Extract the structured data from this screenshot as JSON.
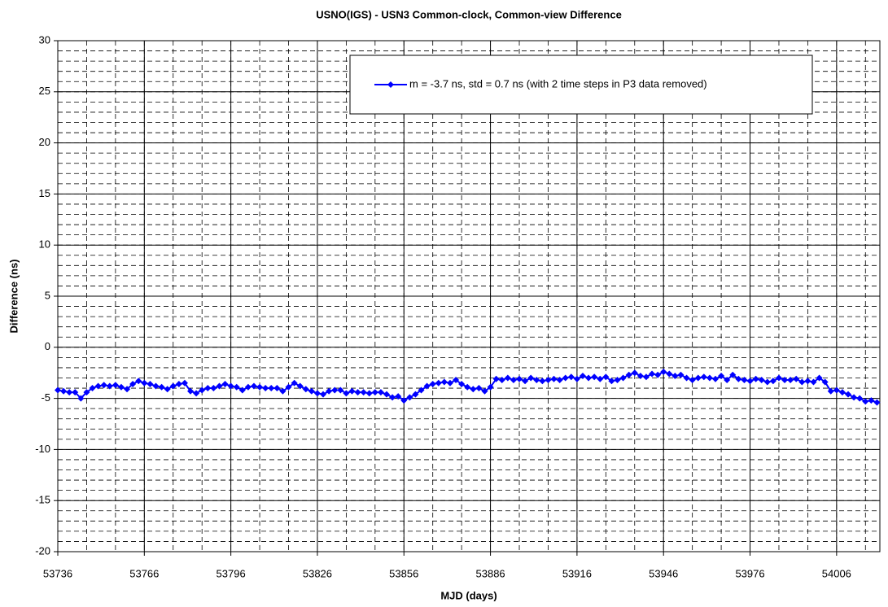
{
  "chart_data": {
    "type": "line",
    "title": "USNO(IGS) - USN3 Common-clock, Common-view Difference",
    "x_label": "MJD (days)",
    "y_label": "Difference (ns)",
    "x": [
      53736,
      53738,
      53740,
      53742,
      53744,
      53746,
      53748,
      53750,
      53752,
      53754,
      53756,
      53758,
      53760,
      53762,
      53764,
      53766,
      53768,
      53770,
      53772,
      53774,
      53776,
      53778,
      53780,
      53782,
      53784,
      53786,
      53788,
      53790,
      53792,
      53794,
      53796,
      53798,
      53800,
      53802,
      53804,
      53806,
      53808,
      53810,
      53812,
      53814,
      53816,
      53818,
      53820,
      53822,
      53824,
      53826,
      53828,
      53830,
      53832,
      53834,
      53836,
      53838,
      53840,
      53842,
      53844,
      53846,
      53848,
      53850,
      53852,
      53854,
      53856,
      53858,
      53860,
      53862,
      53864,
      53866,
      53868,
      53870,
      53872,
      53874,
      53876,
      53878,
      53880,
      53882,
      53884,
      53886,
      53888,
      53890,
      53892,
      53894,
      53896,
      53898,
      53900,
      53902,
      53904,
      53906,
      53908,
      53910,
      53912,
      53914,
      53916,
      53918,
      53920,
      53922,
      53924,
      53926,
      53928,
      53930,
      53932,
      53934,
      53936,
      53938,
      53940,
      53942,
      53944,
      53946,
      53948,
      53950,
      53952,
      53954,
      53956,
      53958,
      53960,
      53962,
      53964,
      53966,
      53968,
      53970,
      53972,
      53974,
      53976,
      53978,
      53980,
      53982,
      53984,
      53986,
      53988,
      53990,
      53992,
      53994,
      53996,
      53998,
      54000,
      54002,
      54004,
      54006,
      54008,
      54010,
      54012,
      54014,
      54016,
      54018,
      54020
    ],
    "series": [
      {
        "name": "m = -3.7 ns, std = 0.7 ns (with 2 time steps in P3 data removed)",
        "color": "#0000ff",
        "values": [
          -4.2,
          -4.3,
          -4.4,
          -4.4,
          -5.0,
          -4.4,
          -4.0,
          -3.8,
          -3.7,
          -3.8,
          -3.7,
          -3.9,
          -4.1,
          -3.6,
          -3.3,
          -3.5,
          -3.6,
          -3.8,
          -3.9,
          -4.1,
          -3.8,
          -3.6,
          -3.5,
          -4.3,
          -4.5,
          -4.2,
          -4.0,
          -4.0,
          -3.8,
          -3.6,
          -3.8,
          -3.9,
          -4.2,
          -3.9,
          -3.8,
          -3.9,
          -4.0,
          -4.0,
          -4.0,
          -4.3,
          -3.9,
          -3.5,
          -3.8,
          -4.1,
          -4.3,
          -4.5,
          -4.6,
          -4.3,
          -4.2,
          -4.2,
          -4.5,
          -4.3,
          -4.4,
          -4.4,
          -4.5,
          -4.4,
          -4.4,
          -4.6,
          -4.9,
          -4.8,
          -5.2,
          -4.9,
          -4.6,
          -4.2,
          -3.8,
          -3.6,
          -3.5,
          -3.4,
          -3.5,
          -3.2,
          -3.6,
          -3.9,
          -4.1,
          -4.0,
          -4.3,
          -3.9,
          -3.1,
          -3.2,
          -3.0,
          -3.2,
          -3.1,
          -3.3,
          -3.0,
          -3.2,
          -3.3,
          -3.2,
          -3.1,
          -3.2,
          -3.0,
          -2.9,
          -3.1,
          -2.8,
          -3.0,
          -2.9,
          -3.1,
          -2.9,
          -3.3,
          -3.2,
          -3.0,
          -2.7,
          -2.5,
          -2.8,
          -2.9,
          -2.6,
          -2.7,
          -2.4,
          -2.6,
          -2.8,
          -2.7,
          -3.0,
          -3.2,
          -3.0,
          -2.9,
          -3.0,
          -3.1,
          -2.8,
          -3.2,
          -2.7,
          -3.1,
          -3.2,
          -3.3,
          -3.1,
          -3.2,
          -3.4,
          -3.3,
          -3.0,
          -3.2,
          -3.2,
          -3.1,
          -3.4,
          -3.3,
          -3.4,
          -3.0,
          -3.4,
          -4.3,
          -4.2,
          -4.4,
          -4.6,
          -4.9,
          -5.0,
          -5.3,
          -5.2,
          -5.4
        ]
      }
    ],
    "xlim": [
      53736,
      54021
    ],
    "xticks": [
      53736,
      53766,
      53796,
      53826,
      53856,
      53886,
      53916,
      53946,
      53976,
      54006
    ],
    "ylim": [
      -20,
      30
    ],
    "yticks": [
      -20,
      -15,
      -10,
      -5,
      0,
      5,
      10,
      15,
      20,
      25,
      30
    ],
    "x_minor_step": 10,
    "y_minor_step": 1,
    "grid": true,
    "legend": "upper right"
  }
}
